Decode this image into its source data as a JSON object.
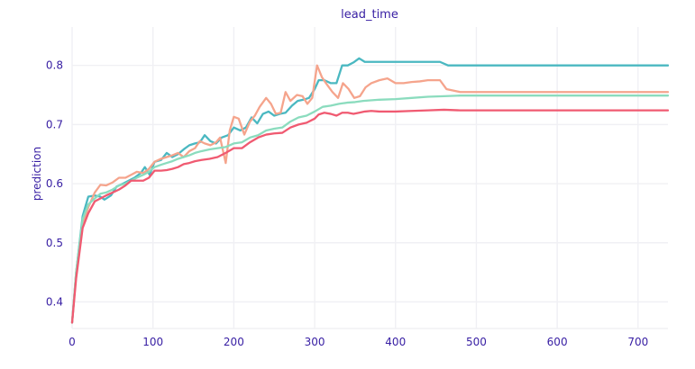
{
  "chart_data": {
    "type": "line",
    "title": "lead_time",
    "xlabel": "",
    "ylabel": "prediction",
    "xlim": [
      0,
      737
    ],
    "ylim": [
      0.355,
      0.865
    ],
    "x_ticks": [
      0,
      100,
      200,
      300,
      400,
      500,
      600,
      700
    ],
    "y_ticks": [
      0.4,
      0.5,
      0.6,
      0.7,
      0.8
    ],
    "grid": true,
    "legend": "none",
    "colors": {
      "text": "#371ea3",
      "grid": "#f0f0f4",
      "axis_line": "#f0f0f4"
    },
    "series": [
      {
        "color": "#4ab8c1",
        "points": [
          [
            0,
            0.365
          ],
          [
            5,
            0.45
          ],
          [
            13,
            0.545
          ],
          [
            20,
            0.578
          ],
          [
            28,
            0.58
          ],
          [
            35,
            0.578
          ],
          [
            40,
            0.573
          ],
          [
            48,
            0.58
          ],
          [
            55,
            0.595
          ],
          [
            63,
            0.6
          ],
          [
            70,
            0.605
          ],
          [
            77,
            0.61
          ],
          [
            85,
            0.618
          ],
          [
            90,
            0.628
          ],
          [
            96,
            0.615
          ],
          [
            102,
            0.637
          ],
          [
            110,
            0.64
          ],
          [
            117,
            0.652
          ],
          [
            124,
            0.645
          ],
          [
            131,
            0.65
          ],
          [
            138,
            0.658
          ],
          [
            145,
            0.665
          ],
          [
            152,
            0.668
          ],
          [
            158,
            0.67
          ],
          [
            164,
            0.682
          ],
          [
            171,
            0.672
          ],
          [
            178,
            0.668
          ],
          [
            185,
            0.678
          ],
          [
            193,
            0.682
          ],
          [
            200,
            0.695
          ],
          [
            208,
            0.69
          ],
          [
            215,
            0.695
          ],
          [
            222,
            0.712
          ],
          [
            229,
            0.702
          ],
          [
            236,
            0.718
          ],
          [
            243,
            0.722
          ],
          [
            250,
            0.715
          ],
          [
            257,
            0.718
          ],
          [
            264,
            0.72
          ],
          [
            272,
            0.732
          ],
          [
            279,
            0.74
          ],
          [
            286,
            0.742
          ],
          [
            293,
            0.745
          ],
          [
            300,
            0.76
          ],
          [
            305,
            0.775
          ],
          [
            312,
            0.775
          ],
          [
            320,
            0.77
          ],
          [
            327,
            0.77
          ],
          [
            334,
            0.8
          ],
          [
            341,
            0.8
          ],
          [
            348,
            0.805
          ],
          [
            355,
            0.812
          ],
          [
            362,
            0.806
          ],
          [
            380,
            0.806
          ],
          [
            420,
            0.806
          ],
          [
            455,
            0.806
          ],
          [
            465,
            0.8
          ],
          [
            737,
            0.8
          ]
        ]
      },
      {
        "color": "#f5a48c",
        "points": [
          [
            0,
            0.365
          ],
          [
            5,
            0.45
          ],
          [
            13,
            0.53
          ],
          [
            20,
            0.56
          ],
          [
            28,
            0.585
          ],
          [
            35,
            0.598
          ],
          [
            42,
            0.597
          ],
          [
            50,
            0.602
          ],
          [
            58,
            0.61
          ],
          [
            66,
            0.61
          ],
          [
            73,
            0.615
          ],
          [
            80,
            0.62
          ],
          [
            88,
            0.618
          ],
          [
            95,
            0.625
          ],
          [
            102,
            0.637
          ],
          [
            110,
            0.642
          ],
          [
            117,
            0.645
          ],
          [
            124,
            0.648
          ],
          [
            131,
            0.652
          ],
          [
            138,
            0.645
          ],
          [
            145,
            0.655
          ],
          [
            152,
            0.66
          ],
          [
            158,
            0.672
          ],
          [
            164,
            0.668
          ],
          [
            171,
            0.665
          ],
          [
            178,
            0.67
          ],
          [
            183,
            0.678
          ],
          [
            190,
            0.635
          ],
          [
            195,
            0.69
          ],
          [
            200,
            0.713
          ],
          [
            206,
            0.71
          ],
          [
            213,
            0.683
          ],
          [
            220,
            0.705
          ],
          [
            226,
            0.715
          ],
          [
            232,
            0.73
          ],
          [
            240,
            0.745
          ],
          [
            246,
            0.735
          ],
          [
            252,
            0.718
          ],
          [
            258,
            0.72
          ],
          [
            264,
            0.755
          ],
          [
            270,
            0.74
          ],
          [
            278,
            0.75
          ],
          [
            285,
            0.748
          ],
          [
            291,
            0.735
          ],
          [
            297,
            0.745
          ],
          [
            303,
            0.8
          ],
          [
            309,
            0.78
          ],
          [
            315,
            0.768
          ],
          [
            322,
            0.755
          ],
          [
            329,
            0.745
          ],
          [
            335,
            0.77
          ],
          [
            342,
            0.76
          ],
          [
            349,
            0.745
          ],
          [
            356,
            0.748
          ],
          [
            363,
            0.763
          ],
          [
            370,
            0.77
          ],
          [
            380,
            0.775
          ],
          [
            390,
            0.778
          ],
          [
            400,
            0.77
          ],
          [
            410,
            0.77
          ],
          [
            420,
            0.772
          ],
          [
            430,
            0.773
          ],
          [
            440,
            0.775
          ],
          [
            455,
            0.775
          ],
          [
            463,
            0.76
          ],
          [
            480,
            0.755
          ],
          [
            737,
            0.755
          ]
        ]
      },
      {
        "color": "#8bdcbe",
        "points": [
          [
            0,
            0.365
          ],
          [
            5,
            0.45
          ],
          [
            13,
            0.54
          ],
          [
            20,
            0.565
          ],
          [
            28,
            0.575
          ],
          [
            35,
            0.583
          ],
          [
            42,
            0.585
          ],
          [
            50,
            0.59
          ],
          [
            58,
            0.597
          ],
          [
            66,
            0.6
          ],
          [
            73,
            0.605
          ],
          [
            80,
            0.61
          ],
          [
            88,
            0.615
          ],
          [
            95,
            0.62
          ],
          [
            102,
            0.628
          ],
          [
            110,
            0.632
          ],
          [
            117,
            0.635
          ],
          [
            124,
            0.638
          ],
          [
            131,
            0.642
          ],
          [
            138,
            0.645
          ],
          [
            145,
            0.648
          ],
          [
            152,
            0.652
          ],
          [
            160,
            0.655
          ],
          [
            170,
            0.658
          ],
          [
            180,
            0.66
          ],
          [
            190,
            0.662
          ],
          [
            200,
            0.668
          ],
          [
            210,
            0.67
          ],
          [
            220,
            0.678
          ],
          [
            230,
            0.682
          ],
          [
            240,
            0.69
          ],
          [
            250,
            0.693
          ],
          [
            260,
            0.695
          ],
          [
            270,
            0.705
          ],
          [
            280,
            0.712
          ],
          [
            290,
            0.715
          ],
          [
            300,
            0.722
          ],
          [
            310,
            0.73
          ],
          [
            320,
            0.732
          ],
          [
            330,
            0.735
          ],
          [
            340,
            0.737
          ],
          [
            350,
            0.738
          ],
          [
            360,
            0.74
          ],
          [
            380,
            0.742
          ],
          [
            400,
            0.743
          ],
          [
            420,
            0.745
          ],
          [
            440,
            0.747
          ],
          [
            460,
            0.748
          ],
          [
            480,
            0.749
          ],
          [
            737,
            0.749
          ]
        ]
      },
      {
        "color": "#f05a71",
        "points": [
          [
            0,
            0.365
          ],
          [
            5,
            0.44
          ],
          [
            13,
            0.525
          ],
          [
            20,
            0.55
          ],
          [
            28,
            0.57
          ],
          [
            35,
            0.575
          ],
          [
            42,
            0.58
          ],
          [
            50,
            0.585
          ],
          [
            58,
            0.59
          ],
          [
            66,
            0.597
          ],
          [
            73,
            0.605
          ],
          [
            80,
            0.605
          ],
          [
            88,
            0.605
          ],
          [
            95,
            0.61
          ],
          [
            102,
            0.622
          ],
          [
            110,
            0.622
          ],
          [
            117,
            0.623
          ],
          [
            124,
            0.625
          ],
          [
            131,
            0.628
          ],
          [
            138,
            0.633
          ],
          [
            145,
            0.635
          ],
          [
            152,
            0.638
          ],
          [
            160,
            0.64
          ],
          [
            170,
            0.642
          ],
          [
            180,
            0.645
          ],
          [
            190,
            0.652
          ],
          [
            200,
            0.66
          ],
          [
            210,
            0.66
          ],
          [
            220,
            0.67
          ],
          [
            230,
            0.678
          ],
          [
            240,
            0.683
          ],
          [
            250,
            0.685
          ],
          [
            260,
            0.686
          ],
          [
            270,
            0.695
          ],
          [
            280,
            0.7
          ],
          [
            290,
            0.703
          ],
          [
            300,
            0.71
          ],
          [
            305,
            0.717
          ],
          [
            312,
            0.72
          ],
          [
            320,
            0.718
          ],
          [
            327,
            0.715
          ],
          [
            334,
            0.72
          ],
          [
            341,
            0.72
          ],
          [
            348,
            0.718
          ],
          [
            355,
            0.72
          ],
          [
            362,
            0.722
          ],
          [
            370,
            0.723
          ],
          [
            380,
            0.722
          ],
          [
            400,
            0.722
          ],
          [
            420,
            0.723
          ],
          [
            440,
            0.724
          ],
          [
            460,
            0.725
          ],
          [
            480,
            0.724
          ],
          [
            737,
            0.724
          ]
        ]
      }
    ]
  }
}
